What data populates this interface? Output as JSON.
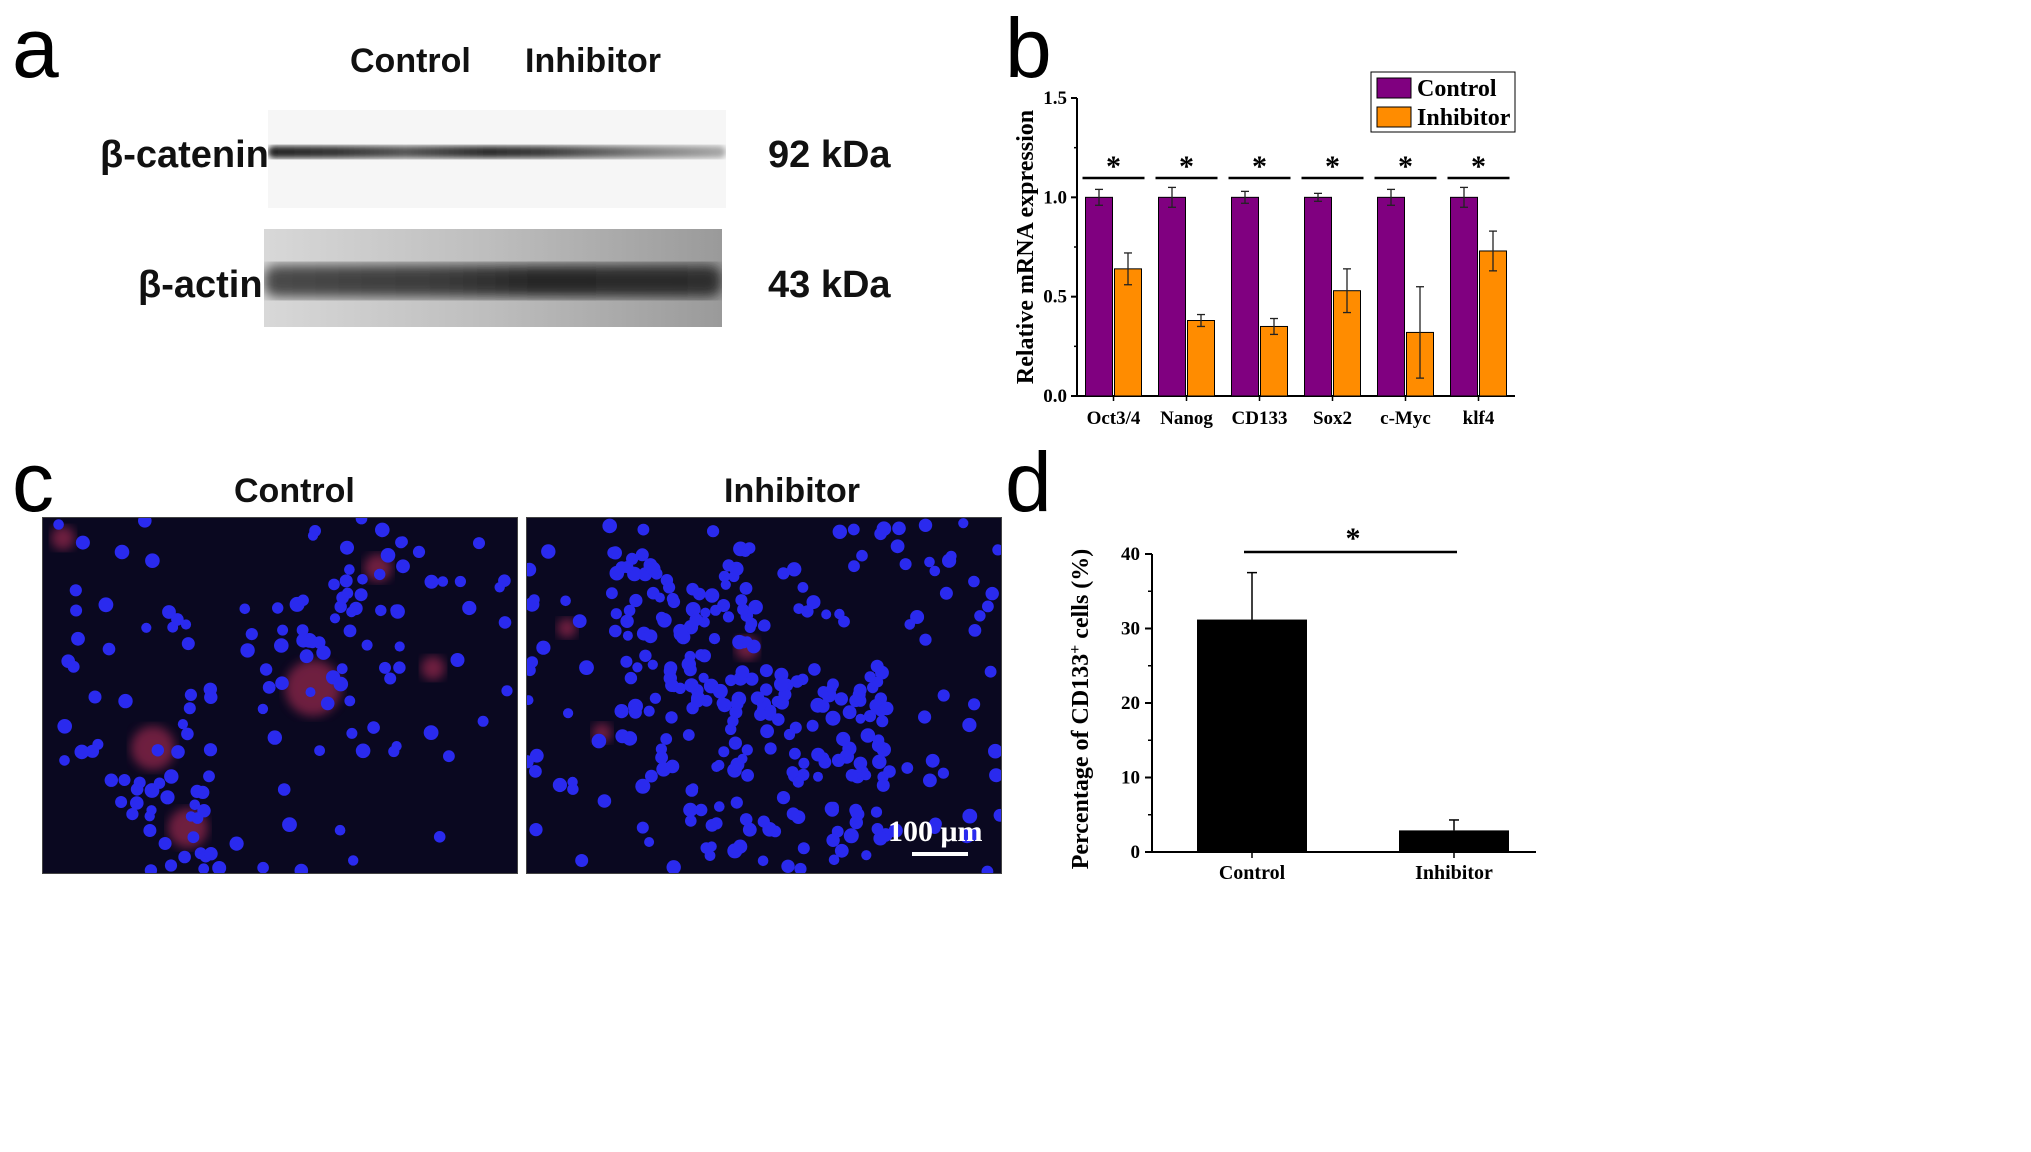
{
  "panel_a": {
    "letter": "a",
    "lanes": [
      "Control",
      "Inhibitor"
    ],
    "rows": [
      {
        "protein": "β-catenin",
        "size": "92 kDa"
      },
      {
        "protein": "β-actin",
        "size": "43 kDa"
      }
    ]
  },
  "panel_b": {
    "letter": "b"
  },
  "panel_c": {
    "letter": "c",
    "titles": [
      "Control",
      "Inhibitor"
    ],
    "scale_bar": "100 μm"
  },
  "panel_d": {
    "letter": "d"
  },
  "chart_data": [
    {
      "type": "bar",
      "title": "",
      "xlabel": "",
      "ylabel": "Relative mRNA expression",
      "ylim": [
        0,
        1.5
      ],
      "yticks": [
        "0.0",
        "0.5",
        "1.0",
        "1.5"
      ],
      "categories": [
        "Oct3/4",
        "Nanog",
        "CD133",
        "Sox2",
        "c-Myc",
        "klf4"
      ],
      "series": [
        {
          "name": "Control",
          "color": "#800080",
          "values": [
            1.0,
            1.0,
            1.0,
            1.0,
            1.0,
            1.0
          ],
          "errors": [
            0.04,
            0.05,
            0.03,
            0.02,
            0.04,
            0.05
          ]
        },
        {
          "name": "Inhibitor",
          "color": "#ff8c00",
          "values": [
            0.64,
            0.38,
            0.35,
            0.53,
            0.32,
            0.73
          ],
          "errors": [
            0.08,
            0.03,
            0.04,
            0.11,
            0.23,
            0.1
          ]
        }
      ],
      "significance": [
        "*",
        "*",
        "*",
        "*",
        "*",
        "*"
      ],
      "legend": "top-right",
      "grid": false
    },
    {
      "type": "bar",
      "title": "",
      "xlabel": "",
      "ylabel": "Percentage of CD133",
      "ylabel_sup": "+",
      "ylabel_tail": " cells (%)",
      "ylim": [
        0,
        40
      ],
      "yticks": [
        "0",
        "10",
        "20",
        "30",
        "40"
      ],
      "categories": [
        "Control",
        "Inhibitor"
      ],
      "values": [
        31.2,
        2.9
      ],
      "errors": [
        6.3,
        1.4
      ],
      "color": "#000000",
      "significance": "*",
      "grid": false
    }
  ]
}
